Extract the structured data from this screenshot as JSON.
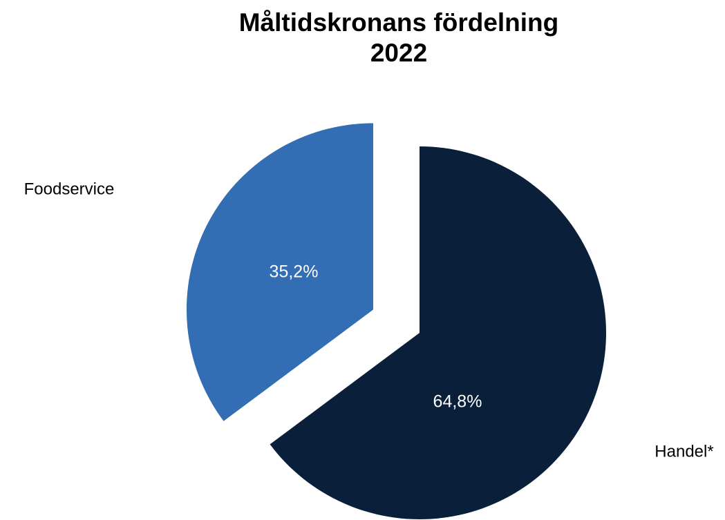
{
  "chart_data": {
    "type": "pie",
    "title": "Måltidskronans fördelning",
    "subtitle": "2022",
    "categories": [
      "Handel*",
      "Foodservice"
    ],
    "values": [
      64.8,
      35.2
    ],
    "value_labels": [
      "64,8%",
      "35,2%"
    ],
    "colors": [
      "#0a1f3a",
      "#336db3"
    ]
  }
}
